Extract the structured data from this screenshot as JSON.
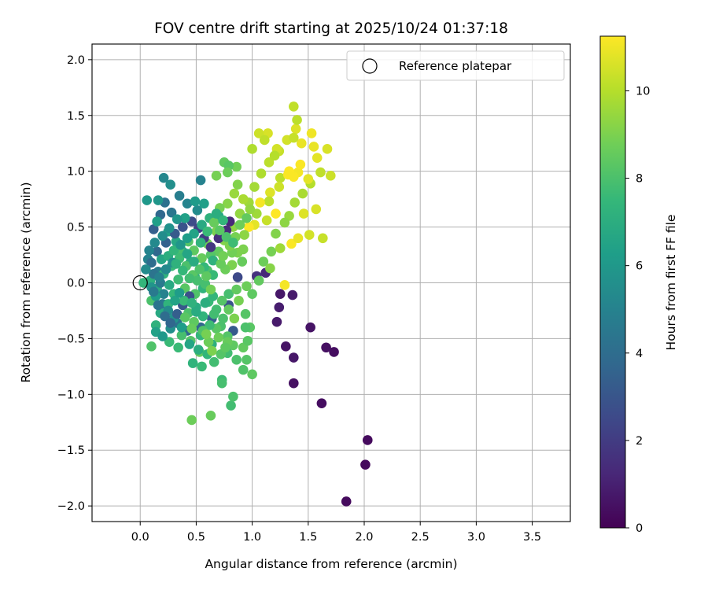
{
  "chart_data": {
    "type": "scatter",
    "title": "FOV centre drift starting at 2025/10/24 01:37:18",
    "xlabel": "Angular distance from reference (arcmin)",
    "ylabel": "Rotation from reference (arcmin)",
    "xlim": [
      -0.43,
      3.84
    ],
    "ylim": [
      -2.14,
      2.14
    ],
    "xticks": [
      0.0,
      0.5,
      1.0,
      1.5,
      2.0,
      2.5,
      3.0,
      3.5
    ],
    "xtick_labels": [
      "0.0",
      "0.5",
      "1.0",
      "1.5",
      "2.0",
      "2.5",
      "3.0",
      "3.5"
    ],
    "yticks": [
      2.0,
      1.5,
      1.0,
      0.5,
      0.0,
      -0.5,
      -1.0,
      -1.5,
      -2.0
    ],
    "ytick_labels": [
      "2.0",
      "1.5",
      "1.0",
      "0.5",
      "0.0",
      "−0.5",
      "−1.0",
      "−1.5",
      "−2.0"
    ],
    "grid": true,
    "legend": {
      "position": "top-right",
      "entries": [
        {
          "label": "Reference platepar",
          "marker": "open-circle"
        }
      ]
    },
    "reference": {
      "x": 0.0,
      "y": 0.0
    },
    "colorbar": {
      "label": "Hours from first FF file",
      "range": [
        0,
        11.25
      ],
      "ticks": [
        0,
        2,
        4,
        6,
        8,
        10
      ],
      "tick_labels": [
        "0",
        "2",
        "4",
        "6",
        "8",
        "10"
      ],
      "colormap": "viridis"
    },
    "points": [
      [
        1.84,
        -1.96,
        0.3
      ],
      [
        2.01,
        -1.63,
        0.3
      ],
      [
        2.03,
        -1.41,
        0.3
      ],
      [
        1.62,
        -1.08,
        0.4
      ],
      [
        1.37,
        -0.9,
        0.5
      ],
      [
        1.73,
        -0.62,
        0.4
      ],
      [
        1.66,
        -0.58,
        0.5
      ],
      [
        1.52,
        -0.4,
        0.6
      ],
      [
        1.37,
        -0.67,
        0.7
      ],
      [
        1.3,
        -0.57,
        0.6
      ],
      [
        1.22,
        -0.35,
        0.8
      ],
      [
        1.24,
        -0.22,
        0.9
      ],
      [
        1.25,
        -0.1,
        0.7
      ],
      [
        1.36,
        -0.11,
        0.8
      ],
      [
        1.12,
        0.09,
        1.3
      ],
      [
        1.04,
        0.06,
        1.6
      ],
      [
        0.87,
        0.05,
        2.5
      ],
      [
        0.79,
        -0.2,
        2.9
      ],
      [
        0.83,
        -0.43,
        3.2
      ],
      [
        0.64,
        -0.32,
        3.4
      ],
      [
        0.54,
        -0.4,
        3.7
      ],
      [
        0.42,
        -0.43,
        3.9
      ],
      [
        0.33,
        -0.36,
        4.2
      ],
      [
        0.2,
        -0.19,
        4.5
      ],
      [
        0.16,
        0.1,
        4.7
      ],
      [
        0.07,
        0.21,
        5.0
      ],
      [
        0.12,
        0.48,
        3.4
      ],
      [
        0.18,
        0.61,
        3.8
      ],
      [
        0.22,
        0.72,
        4.2
      ],
      [
        0.28,
        0.63,
        4.4
      ],
      [
        0.35,
        0.78,
        4.8
      ],
      [
        0.42,
        0.71,
        5.1
      ],
      [
        0.51,
        0.65,
        5.4
      ],
      [
        0.54,
        0.92,
        5.0
      ],
      [
        0.21,
        0.94,
        5.2
      ],
      [
        0.27,
        0.88,
        5.6
      ],
      [
        0.16,
        0.74,
        5.9
      ],
      [
        0.06,
        0.74,
        6.0
      ],
      [
        0.15,
        0.55,
        6.3
      ],
      [
        0.25,
        0.46,
        6.5
      ],
      [
        0.32,
        0.37,
        6.7
      ],
      [
        0.38,
        0.28,
        6.9
      ],
      [
        0.45,
        0.19,
        7.0
      ],
      [
        0.49,
        0.05,
        7.1
      ],
      [
        0.56,
        -0.05,
        7.3
      ],
      [
        0.61,
        -0.17,
        7.6
      ],
      [
        0.66,
        -0.28,
        7.8
      ],
      [
        0.72,
        -0.39,
        8.0
      ],
      [
        0.78,
        -0.48,
        8.2
      ],
      [
        0.83,
        -0.56,
        8.4
      ],
      [
        0.92,
        -0.58,
        8.5
      ],
      [
        0.98,
        -0.4,
        8.3
      ],
      [
        0.95,
        -0.69,
        8.2
      ],
      [
        0.86,
        -0.69,
        8.0
      ],
      [
        0.78,
        -0.63,
        7.8
      ],
      [
        0.73,
        -0.87,
        7.7
      ],
      [
        0.73,
        -0.9,
        7.9
      ],
      [
        0.81,
        -1.1,
        7.8
      ],
      [
        0.83,
        -1.02,
        8.0
      ],
      [
        0.63,
        -1.19,
        8.6
      ],
      [
        0.46,
        -1.23,
        8.7
      ],
      [
        0.55,
        -0.75,
        7.6
      ],
      [
        0.47,
        -0.72,
        7.3
      ],
      [
        0.64,
        -0.55,
        7.1
      ],
      [
        0.54,
        -0.47,
        7.4
      ],
      [
        0.26,
        -0.53,
        7.6
      ],
      [
        0.1,
        -0.57,
        8.1
      ],
      [
        0.14,
        -0.38,
        7.2
      ],
      [
        0.1,
        -0.16,
        8.0
      ],
      [
        0.03,
        0.0,
        7.4
      ],
      [
        0.09,
        0.02,
        7.1
      ],
      [
        0.15,
        -0.05,
        6.9
      ],
      [
        0.21,
        0.08,
        7.3
      ],
      [
        0.28,
        0.15,
        7.6
      ],
      [
        0.35,
        0.3,
        7.9
      ],
      [
        0.43,
        0.37,
        8.2
      ],
      [
        0.48,
        0.29,
        8.4
      ],
      [
        0.55,
        0.22,
        8.6
      ],
      [
        0.6,
        0.35,
        8.8
      ],
      [
        0.68,
        0.46,
        9.0
      ],
      [
        0.75,
        0.38,
        9.1
      ],
      [
        0.83,
        0.5,
        9.3
      ],
      [
        0.89,
        0.62,
        9.4
      ],
      [
        0.97,
        0.72,
        9.6
      ],
      [
        1.02,
        0.86,
        9.7
      ],
      [
        1.08,
        0.98,
        9.9
      ],
      [
        1.15,
        1.08,
        10.1
      ],
      [
        1.24,
        1.18,
        10.3
      ],
      [
        1.31,
        1.28,
        10.5
      ],
      [
        1.39,
        1.38,
        10.7
      ],
      [
        1.44,
        1.25,
        10.9
      ],
      [
        1.53,
        1.34,
        11.0
      ],
      [
        1.58,
        1.12,
        10.8
      ],
      [
        1.67,
        1.2,
        10.6
      ],
      [
        1.7,
        0.96,
        10.4
      ],
      [
        1.61,
        0.99,
        10.2
      ],
      [
        1.52,
        0.89,
        10.0
      ],
      [
        1.45,
        0.8,
        9.8
      ],
      [
        1.38,
        0.72,
        9.7
      ],
      [
        1.33,
        0.6,
        9.5
      ],
      [
        1.29,
        0.54,
        9.3
      ],
      [
        1.21,
        0.44,
        9.1
      ],
      [
        1.17,
        0.28,
        8.9
      ],
      [
        1.1,
        0.19,
        8.7
      ],
      [
        1.06,
        0.02,
        8.5
      ],
      [
        1.0,
        -0.1,
        8.4
      ],
      [
        0.94,
        -0.28,
        8.2
      ],
      [
        0.96,
        -0.52,
        8.3
      ],
      [
        0.92,
        -0.78,
        8.1
      ],
      [
        1.0,
        -0.82,
        8.4
      ],
      [
        1.16,
        0.13,
        9.2
      ],
      [
        1.25,
        0.31,
        9.6
      ],
      [
        1.35,
        0.35,
        11.2
      ],
      [
        1.29,
        -0.02,
        11.1
      ],
      [
        1.41,
        0.4,
        10.9
      ],
      [
        1.51,
        0.43,
        10.5
      ],
      [
        1.63,
        0.4,
        10.3
      ],
      [
        1.46,
        0.62,
        10.7
      ],
      [
        1.57,
        0.66,
        10.6
      ],
      [
        1.5,
        0.93,
        10.8
      ],
      [
        1.41,
        0.99,
        11.1
      ],
      [
        1.33,
        1.0,
        11.3
      ],
      [
        1.37,
        0.95,
        11.2
      ],
      [
        1.43,
        1.06,
        11.2
      ],
      [
        1.55,
        1.22,
        10.9
      ],
      [
        1.37,
        1.58,
        10.2
      ],
      [
        1.4,
        1.46,
        10.1
      ],
      [
        1.37,
        1.3,
        10.3
      ],
      [
        1.22,
        1.2,
        10.5
      ],
      [
        1.14,
        1.34,
        10.6
      ],
      [
        1.06,
        1.34,
        10.4
      ],
      [
        1.11,
        1.28,
        10.2
      ],
      [
        1.0,
        1.2,
        9.9
      ],
      [
        0.86,
        1.04,
        8.8
      ],
      [
        0.75,
        1.08,
        8.5
      ],
      [
        0.79,
        1.05,
        8.3
      ],
      [
        0.78,
        0.99,
        8.7
      ],
      [
        0.68,
        0.96,
        8.9
      ],
      [
        0.87,
        0.88,
        9.1
      ],
      [
        1.2,
        1.14,
        10.0
      ],
      [
        1.25,
        0.94,
        10.1
      ],
      [
        1.32,
        0.97,
        11.2
      ],
      [
        1.24,
        0.86,
        10.4
      ],
      [
        1.16,
        0.81,
        10.7
      ],
      [
        1.13,
        0.56,
        10.3
      ],
      [
        1.21,
        0.62,
        11.3
      ],
      [
        1.15,
        0.73,
        10.1
      ],
      [
        1.07,
        0.72,
        11.1
      ],
      [
        1.04,
        0.62,
        9.6
      ],
      [
        1.02,
        0.52,
        10.8
      ],
      [
        0.97,
        0.5,
        11.2
      ],
      [
        0.93,
        0.43,
        9.3
      ],
      [
        0.87,
        0.27,
        9.0
      ],
      [
        0.91,
        0.19,
        8.6
      ],
      [
        0.92,
        0.3,
        9.0
      ],
      [
        0.82,
        0.27,
        8.8
      ],
      [
        0.82,
        0.16,
        9.0
      ],
      [
        0.76,
        0.12,
        8.7
      ],
      [
        0.7,
        0.28,
        8.5
      ],
      [
        0.63,
        0.25,
        8.2
      ],
      [
        0.6,
        0.11,
        8.0
      ],
      [
        0.65,
        0.07,
        7.6
      ],
      [
        0.58,
        -0.01,
        7.9
      ],
      [
        0.49,
        -0.1,
        8.1
      ],
      [
        0.4,
        -0.05,
        8.3
      ],
      [
        0.34,
        0.03,
        7.7
      ],
      [
        0.3,
        -0.1,
        7.5
      ],
      [
        0.25,
        -0.19,
        7.3
      ],
      [
        0.18,
        -0.27,
        6.8
      ],
      [
        0.14,
        -0.44,
        6.4
      ],
      [
        0.2,
        -0.48,
        6.0
      ],
      [
        0.27,
        -0.41,
        5.6
      ],
      [
        0.34,
        -0.58,
        7.6
      ],
      [
        0.37,
        -0.47,
        7.9
      ],
      [
        0.45,
        -0.52,
        8.2
      ],
      [
        0.53,
        -0.62,
        8.5
      ],
      [
        0.61,
        -0.53,
        8.7
      ],
      [
        0.68,
        -0.41,
        8.3
      ],
      [
        0.74,
        -0.32,
        8.0
      ],
      [
        0.79,
        -0.1,
        7.9
      ],
      [
        0.86,
        -0.06,
        8.5
      ],
      [
        0.95,
        -0.03,
        8.7
      ],
      [
        0.88,
        -0.16,
        8.9
      ],
      [
        0.84,
        -0.32,
        9.0
      ],
      [
        0.78,
        -0.53,
        8.6
      ],
      [
        0.72,
        -0.64,
        8.2
      ],
      [
        0.66,
        -0.71,
        7.8
      ],
      [
        0.6,
        -0.64,
        7.4
      ],
      [
        0.52,
        -0.6,
        7.0
      ],
      [
        0.44,
        -0.55,
        6.6
      ],
      [
        0.37,
        -0.4,
        6.2
      ],
      [
        0.3,
        -0.32,
        5.8
      ],
      [
        0.25,
        -0.25,
        5.4
      ],
      [
        0.21,
        -0.1,
        5.0
      ],
      [
        0.18,
        0.0,
        4.6
      ],
      [
        0.12,
        0.08,
        4.3
      ],
      [
        0.1,
        0.18,
        4.0
      ],
      [
        0.15,
        0.28,
        3.8
      ],
      [
        0.23,
        0.36,
        3.5
      ],
      [
        0.31,
        0.44,
        3.2
      ],
      [
        0.38,
        0.5,
        2.9
      ],
      [
        0.46,
        0.55,
        2.6
      ],
      [
        0.52,
        0.49,
        2.3
      ],
      [
        0.57,
        0.4,
        2.0
      ],
      [
        0.63,
        0.32,
        1.8
      ],
      [
        0.7,
        0.4,
        1.6
      ],
      [
        0.77,
        0.47,
        1.4
      ],
      [
        0.8,
        0.55,
        1.3
      ],
      [
        0.7,
        0.6,
        6.7
      ],
      [
        0.62,
        0.58,
        7.2
      ],
      [
        0.57,
        0.71,
        6.3
      ],
      [
        0.49,
        0.73,
        6.1
      ],
      [
        0.4,
        0.58,
        6.4
      ],
      [
        0.33,
        0.57,
        5.9
      ],
      [
        0.26,
        0.49,
        5.7
      ],
      [
        0.2,
        0.42,
        5.5
      ],
      [
        0.13,
        0.36,
        5.3
      ],
      [
        0.08,
        0.29,
        5.1
      ],
      [
        0.05,
        0.12,
        5.4
      ],
      [
        0.1,
        -0.04,
        5.8
      ],
      [
        0.14,
        -0.12,
        6.2
      ],
      [
        0.19,
        0.21,
        6.6
      ],
      [
        0.25,
        0.24,
        7.0
      ],
      [
        0.3,
        0.29,
        7.4
      ],
      [
        0.35,
        0.22,
        7.7
      ],
      [
        0.41,
        0.15,
        8.0
      ],
      [
        0.47,
        0.07,
        8.3
      ],
      [
        0.51,
        0.02,
        7.9
      ],
      [
        0.57,
        0.14,
        7.5
      ],
      [
        0.65,
        0.2,
        7.2
      ],
      [
        0.72,
        0.17,
        8.6
      ],
      [
        0.74,
        0.24,
        8.8
      ],
      [
        0.8,
        0.33,
        9.0
      ],
      [
        0.85,
        0.41,
        8.9
      ],
      [
        0.89,
        0.52,
        8.7
      ],
      [
        0.95,
        0.58,
        8.5
      ],
      [
        0.98,
        0.66,
        9.4
      ],
      [
        0.92,
        0.75,
        9.8
      ],
      [
        0.84,
        0.8,
        9.5
      ],
      [
        0.78,
        0.71,
        9.2
      ],
      [
        0.71,
        0.67,
        8.9
      ],
      [
        0.66,
        0.54,
        8.6
      ],
      [
        0.71,
        0.47,
        8.3
      ],
      [
        0.77,
        0.41,
        8.0
      ],
      [
        0.83,
        0.36,
        7.7
      ],
      [
        0.74,
        0.56,
        7.4
      ],
      [
        0.68,
        0.62,
        7.0
      ],
      [
        0.55,
        0.52,
        6.8
      ],
      [
        0.48,
        0.44,
        6.5
      ],
      [
        0.42,
        0.4,
        6.2
      ],
      [
        0.36,
        0.34,
        5.9
      ],
      [
        0.29,
        0.18,
        5.6
      ],
      [
        0.23,
        0.12,
        5.3
      ],
      [
        0.17,
        0.05,
        4.9
      ],
      [
        0.12,
        -0.08,
        4.6
      ],
      [
        0.16,
        -0.2,
        4.3
      ],
      [
        0.22,
        -0.3,
        4.0
      ],
      [
        0.27,
        -0.36,
        3.7
      ],
      [
        0.33,
        -0.28,
        3.4
      ],
      [
        0.38,
        -0.2,
        3.1
      ],
      [
        0.44,
        -0.12,
        2.8
      ],
      [
        0.5,
        -0.22,
        6.9
      ],
      [
        0.56,
        -0.3,
        7.3
      ],
      [
        0.62,
        -0.38,
        7.7
      ],
      [
        0.56,
        -0.43,
        8.1
      ],
      [
        0.48,
        -0.35,
        8.4
      ],
      [
        0.43,
        -0.27,
        8.0
      ],
      [
        0.39,
        -0.16,
        7.6
      ],
      [
        0.46,
        -0.18,
        7.2
      ],
      [
        0.5,
        -0.26,
        6.9
      ],
      [
        0.58,
        -0.18,
        7.0
      ],
      [
        0.65,
        -0.12,
        7.4
      ],
      [
        0.68,
        -0.24,
        7.8
      ],
      [
        0.73,
        -0.16,
        8.2
      ],
      [
        0.79,
        -0.24,
        8.5
      ],
      [
        0.63,
        -0.06,
        8.8
      ],
      [
        0.59,
        0.06,
        8.4
      ],
      [
        0.53,
        0.12,
        8.1
      ],
      [
        0.44,
        0.04,
        7.8
      ],
      [
        0.38,
        0.11,
        7.5
      ],
      [
        0.32,
        0.17,
        7.2
      ],
      [
        0.26,
        -0.02,
        6.8
      ],
      [
        0.31,
        -0.16,
        6.5
      ],
      [
        0.35,
        -0.09,
        6.2
      ],
      [
        0.4,
        -0.31,
        8.3
      ],
      [
        0.46,
        -0.41,
        8.6
      ],
      [
        0.59,
        -0.46,
        8.9
      ],
      [
        0.64,
        -0.61,
        9.0
      ],
      [
        0.7,
        -0.49,
        8.7
      ],
      [
        0.76,
        -0.58,
        8.4
      ],
      [
        0.94,
        -0.4,
        8.0
      ],
      [
        0.6,
        0.46,
        7.6
      ],
      [
        0.54,
        0.36,
        7.3
      ],
      [
        0.48,
        0.19,
        6.9
      ],
      [
        0.42,
        0.26,
        6.6
      ]
    ]
  }
}
